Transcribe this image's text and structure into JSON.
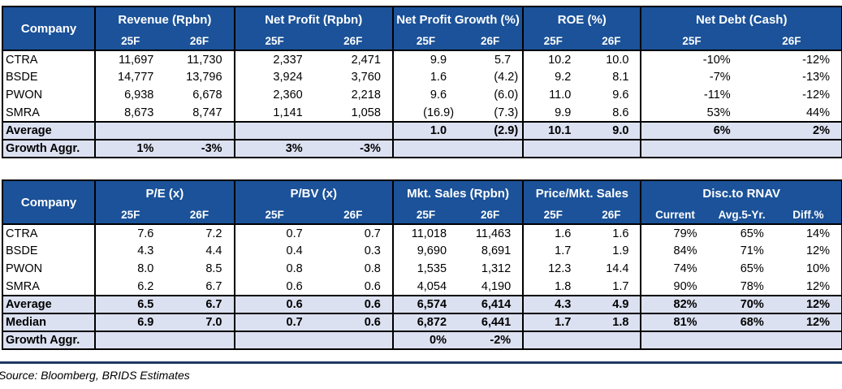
{
  "colors": {
    "header_bg": "#1B5299",
    "band_bg": "#DCE1F1",
    "rule": "#1F3864",
    "header_text": "#FFFFFF",
    "border": "#000000"
  },
  "chart_data": [
    {
      "type": "table",
      "company_col": "Company",
      "groups": [
        {
          "label": "Revenue (Rpbn)",
          "cols": [
            "25F",
            "26F"
          ]
        },
        {
          "label": "Net Profit (Rpbn)",
          "cols": [
            "25F",
            "26F"
          ]
        },
        {
          "label": "Net Profit Growth (%)",
          "cols": [
            "25F",
            "26F"
          ]
        },
        {
          "label": "ROE (%)",
          "cols": [
            "25F",
            "26F"
          ]
        },
        {
          "label": "Net Debt (Cash)",
          "cols": [
            "25F",
            "26F"
          ]
        }
      ],
      "rows": [
        {
          "label": "CTRA",
          "band": false,
          "cells": [
            "11,697",
            "11,730",
            "2,337",
            "2,471",
            "9.9",
            "5.7",
            "10.2",
            "10.0",
            "-10%",
            "-12%"
          ]
        },
        {
          "label": "BSDE",
          "band": false,
          "cells": [
            "14,777",
            "13,796",
            "3,924",
            "3,760",
            "1.6",
            "(4.2)",
            "9.2",
            "8.1",
            "-7%",
            "-13%"
          ]
        },
        {
          "label": "PWON",
          "band": false,
          "cells": [
            "6,938",
            "6,678",
            "2,360",
            "2,218",
            "9.6",
            "(6.0)",
            "11.0",
            "9.6",
            "-11%",
            "-12%"
          ]
        },
        {
          "label": "SMRA",
          "band": false,
          "cells": [
            "8,673",
            "8,747",
            "1,141",
            "1,058",
            "(16.9)",
            "(7.3)",
            "9.9",
            "8.6",
            "53%",
            "44%"
          ]
        },
        {
          "label": "Average",
          "band": true,
          "cells": [
            "",
            "",
            "",
            "",
            "1.0",
            "(2.9)",
            "10.1",
            "9.0",
            "6%",
            "2%"
          ]
        },
        {
          "label": "Growth Aggr.",
          "band": true,
          "cells": [
            "1%",
            "-3%",
            "3%",
            "-3%",
            "",
            "",
            "",
            "",
            "",
            ""
          ]
        }
      ]
    },
    {
      "type": "table",
      "company_col": "Company",
      "groups": [
        {
          "label": "P/E (x)",
          "cols": [
            "25F",
            "26F"
          ]
        },
        {
          "label": "P/BV (x)",
          "cols": [
            "25F",
            "26F"
          ]
        },
        {
          "label": "Mkt. Sales (Rpbn)",
          "cols": [
            "25F",
            "26F"
          ]
        },
        {
          "label": "Price/Mkt. Sales",
          "cols": [
            "25F",
            "26F"
          ]
        },
        {
          "label": "Disc.to RNAV",
          "cols": [
            "Current",
            "Avg.5-Yr.",
            "Diff.%"
          ]
        }
      ],
      "rows": [
        {
          "label": "CTRA",
          "band": false,
          "cells": [
            "7.6",
            "7.2",
            "0.7",
            "0.7",
            "11,018",
            "11,463",
            "1.6",
            "1.6",
            "79%",
            "65%",
            "14%"
          ]
        },
        {
          "label": "BSDE",
          "band": false,
          "cells": [
            "4.3",
            "4.4",
            "0.4",
            "0.3",
            "9,690",
            "8,691",
            "1.7",
            "1.9",
            "84%",
            "71%",
            "12%"
          ]
        },
        {
          "label": "PWON",
          "band": false,
          "cells": [
            "8.0",
            "8.5",
            "0.8",
            "0.8",
            "1,535",
            "1,312",
            "12.3",
            "14.4",
            "74%",
            "65%",
            "10%"
          ]
        },
        {
          "label": "SMRA",
          "band": false,
          "cells": [
            "6.2",
            "6.7",
            "0.6",
            "0.6",
            "4,054",
            "4,190",
            "1.8",
            "1.7",
            "90%",
            "78%",
            "12%"
          ]
        },
        {
          "label": "Average",
          "band": true,
          "cells": [
            "6.5",
            "6.7",
            "0.6",
            "0.6",
            "6,574",
            "6,414",
            "4.3",
            "4.9",
            "82%",
            "70%",
            "12%"
          ]
        },
        {
          "label": "Median",
          "band": true,
          "cells": [
            "6.9",
            "7.0",
            "0.7",
            "0.6",
            "6,872",
            "6,441",
            "1.7",
            "1.8",
            "81%",
            "68%",
            "12%"
          ]
        },
        {
          "label": "Growth Aggr.",
          "band": true,
          "cells": [
            "",
            "",
            "",
            "",
            "0%",
            "-2%",
            "",
            "",
            "",
            "",
            ""
          ]
        }
      ]
    }
  ],
  "footer": {
    "source": "Source: Bloomberg, BRIDS Estimates"
  }
}
